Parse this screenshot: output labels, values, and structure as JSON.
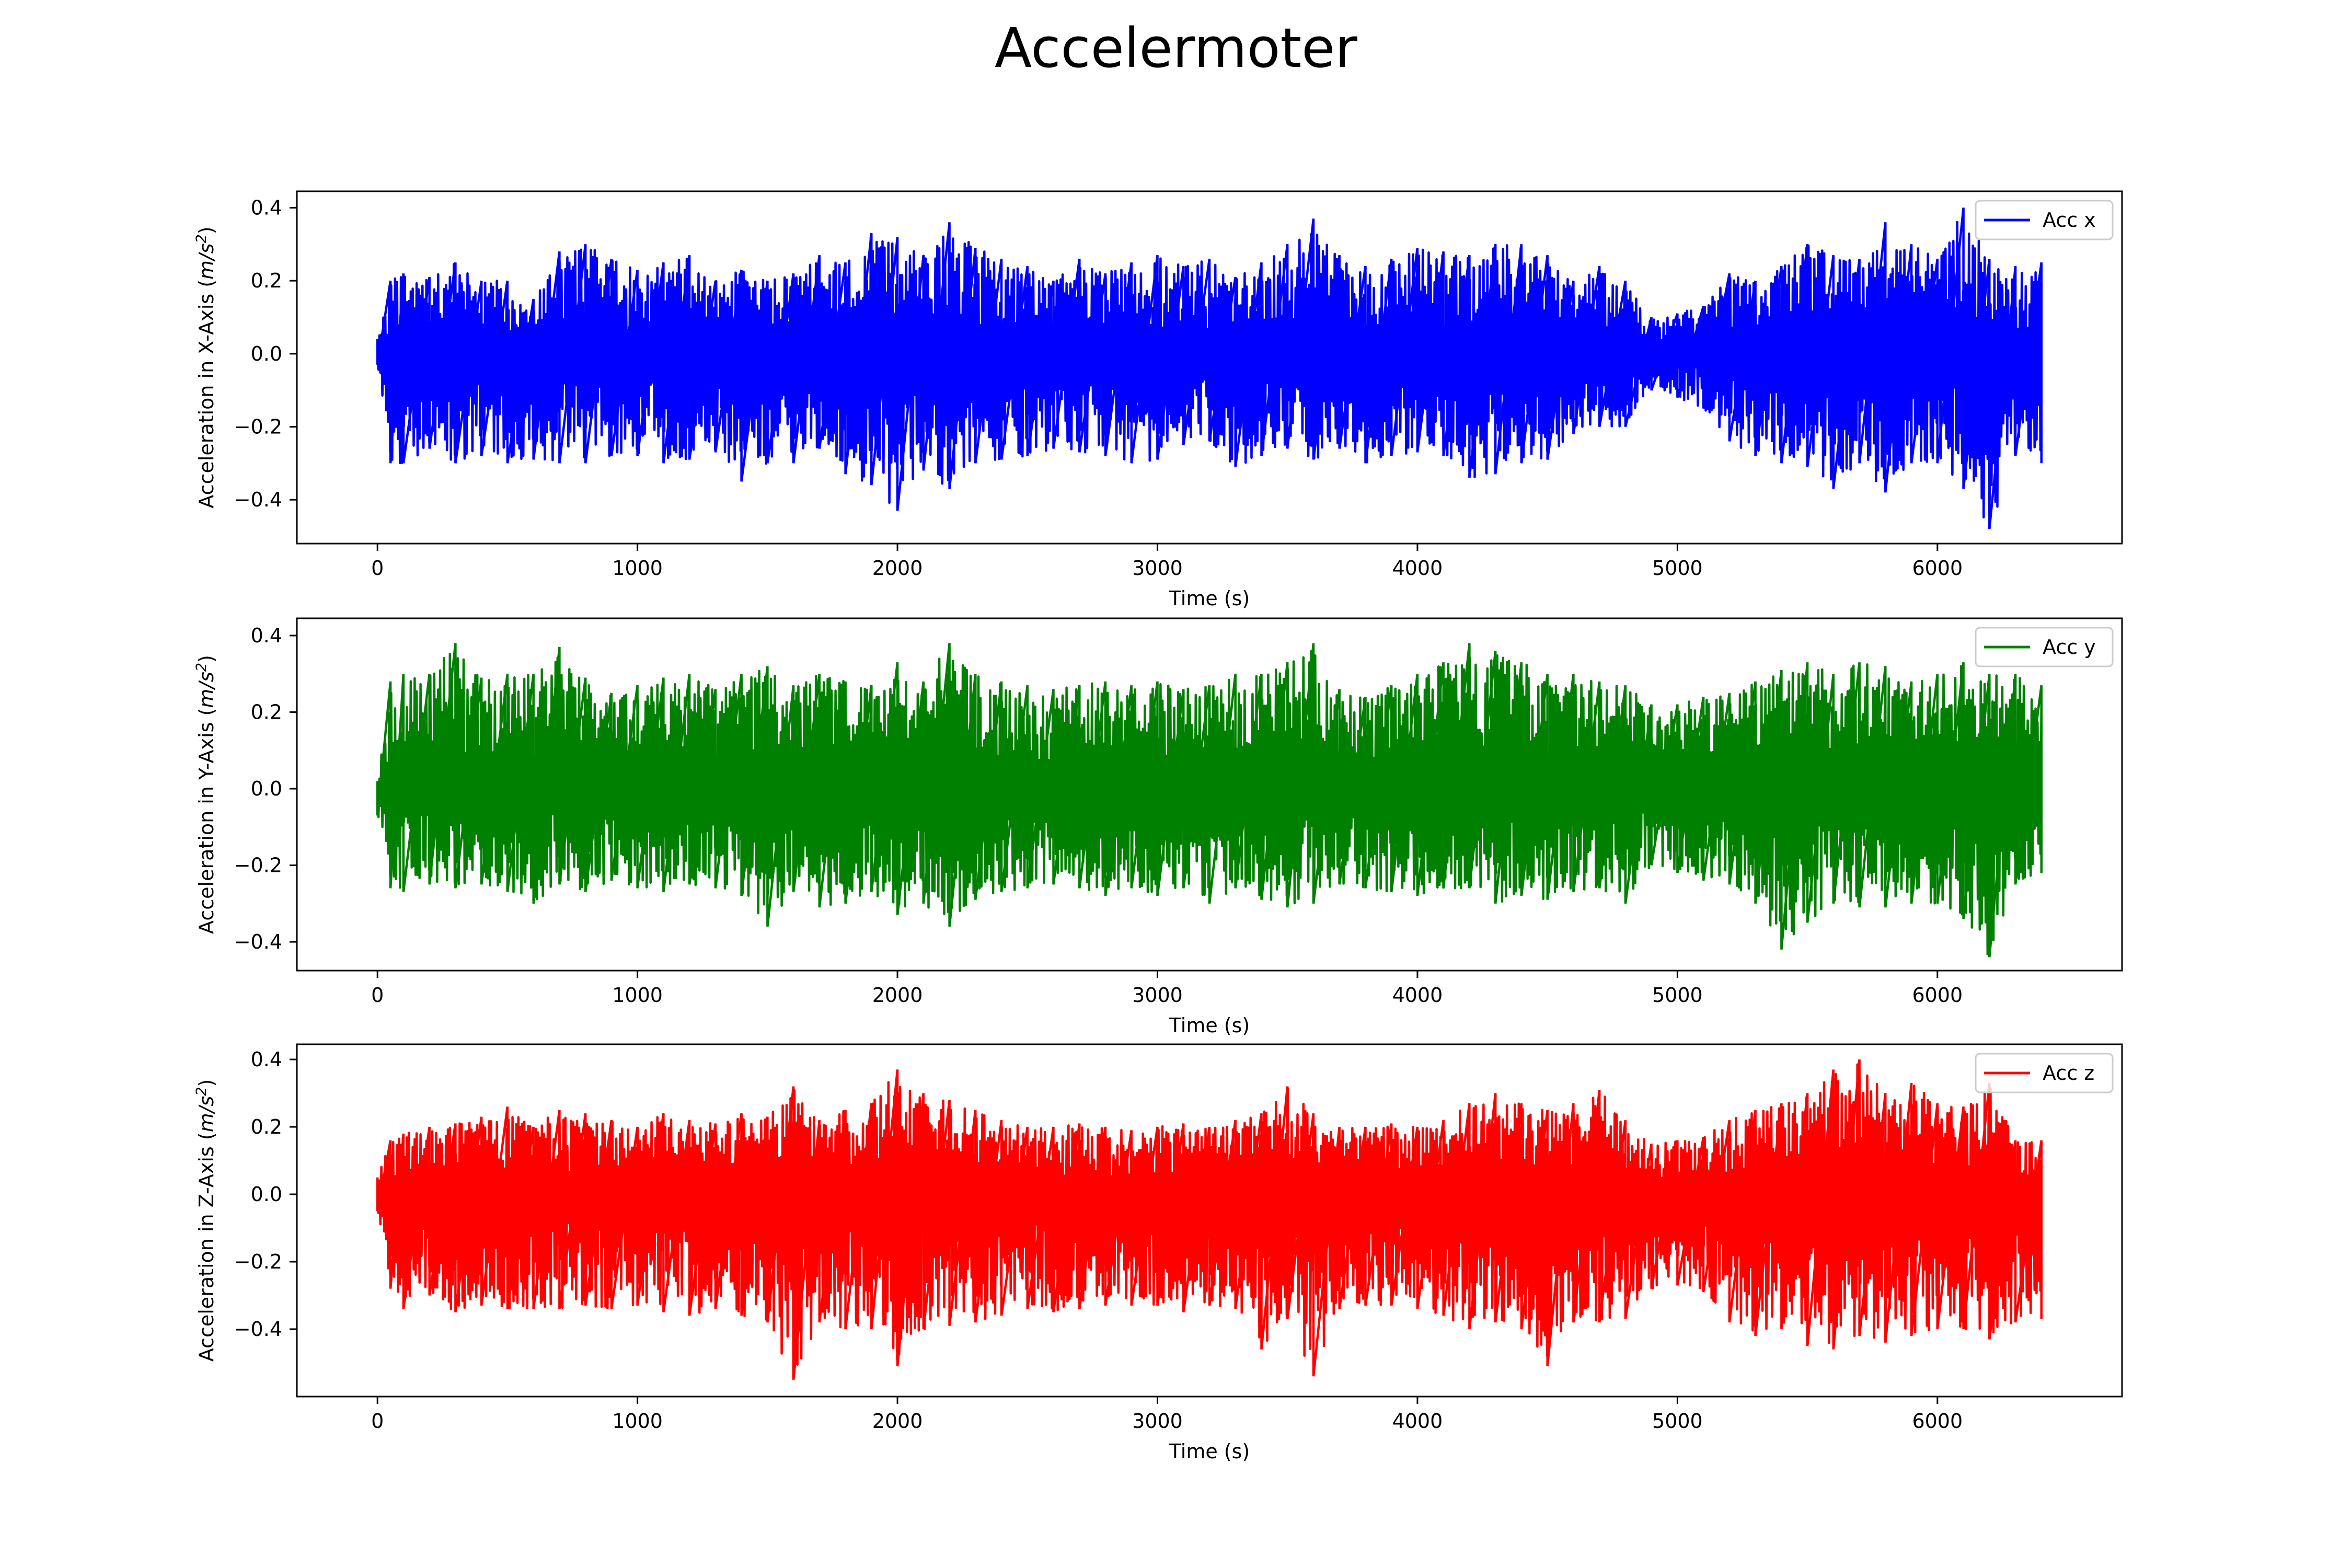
{
  "figure": {
    "title": "Accelermoter"
  },
  "chart_data": [
    {
      "type": "line",
      "xlabel": "Time (s)",
      "ylabel": "Acceleration in X-Axis (m/s²)",
      "ylabel_parts": {
        "prefix": "Acceleration in X-Axis (",
        "unit": "m/s",
        "sup": "2",
        "suffix": ")"
      },
      "xlim": [
        -310,
        6710
      ],
      "ylim": [
        -0.52,
        0.445
      ],
      "xticks": [
        0,
        1000,
        2000,
        3000,
        4000,
        5000,
        6000
      ],
      "yticks": [
        -0.4,
        -0.2,
        0.0,
        0.2,
        0.4
      ],
      "yticklabels": [
        "−0.4",
        "−0.2",
        "0.0",
        "0.2",
        "0.4"
      ],
      "grid": false,
      "legend_position": "top-right",
      "series": [
        {
          "name": "Acc x",
          "color": "#0000ff",
          "x": [
            0,
            50,
            100,
            200,
            300,
            400,
            500,
            600,
            700,
            800,
            900,
            1000,
            1100,
            1200,
            1300,
            1400,
            1500,
            1600,
            1700,
            1800,
            1900,
            2000,
            2100,
            2200,
            2300,
            2400,
            2500,
            2600,
            2700,
            2800,
            2900,
            3000,
            3100,
            3200,
            3300,
            3400,
            3500,
            3600,
            3700,
            3800,
            3900,
            4000,
            4100,
            4200,
            4300,
            4400,
            4500,
            4600,
            4700,
            4800,
            4900,
            5000,
            5100,
            5200,
            5300,
            5400,
            5500,
            5600,
            5700,
            5800,
            5900,
            6000,
            6100,
            6200,
            6300,
            6400
          ],
          "max": [
            0.04,
            0.2,
            0.22,
            0.21,
            0.25,
            0.2,
            0.2,
            0.15,
            0.28,
            0.3,
            0.26,
            0.23,
            0.25,
            0.27,
            0.2,
            0.23,
            0.2,
            0.22,
            0.27,
            0.25,
            0.33,
            0.32,
            0.27,
            0.36,
            0.29,
            0.26,
            0.24,
            0.2,
            0.26,
            0.22,
            0.25,
            0.27,
            0.24,
            0.26,
            0.21,
            0.25,
            0.3,
            0.37,
            0.27,
            0.24,
            0.26,
            0.29,
            0.28,
            0.27,
            0.3,
            0.3,
            0.27,
            0.2,
            0.24,
            0.2,
            0.1,
            0.11,
            0.13,
            0.22,
            0.2,
            0.24,
            0.3,
            0.27,
            0.26,
            0.36,
            0.3,
            0.26,
            0.4,
            0.26,
            0.24,
            0.25
          ],
          "min": [
            -0.03,
            -0.3,
            -0.3,
            -0.26,
            -0.3,
            -0.28,
            -0.3,
            -0.29,
            -0.3,
            -0.3,
            -0.28,
            -0.28,
            -0.3,
            -0.29,
            -0.27,
            -0.35,
            -0.3,
            -0.3,
            -0.26,
            -0.33,
            -0.36,
            -0.43,
            -0.32,
            -0.37,
            -0.3,
            -0.29,
            -0.28,
            -0.26,
            -0.27,
            -0.28,
            -0.3,
            -0.29,
            -0.25,
            -0.24,
            -0.31,
            -0.28,
            -0.26,
            -0.29,
            -0.26,
            -0.3,
            -0.28,
            -0.27,
            -0.28,
            -0.34,
            -0.33,
            -0.3,
            -0.29,
            -0.22,
            -0.2,
            -0.2,
            -0.1,
            -0.12,
            -0.15,
            -0.24,
            -0.28,
            -0.3,
            -0.31,
            -0.37,
            -0.3,
            -0.38,
            -0.3,
            -0.3,
            -0.37,
            -0.48,
            -0.28,
            -0.3
          ]
        }
      ]
    },
    {
      "type": "line",
      "xlabel": "Time (s)",
      "ylabel": "Acceleration in Y-Axis (m/s²)",
      "ylabel_parts": {
        "prefix": "Acceleration in Y-Axis (",
        "unit": "m/s",
        "sup": "2",
        "suffix": ")"
      },
      "xlim": [
        -310,
        6710
      ],
      "ylim": [
        -0.475,
        0.445
      ],
      "xticks": [
        0,
        1000,
        2000,
        3000,
        4000,
        5000,
        6000
      ],
      "yticks": [
        -0.4,
        -0.2,
        0.0,
        0.2,
        0.4
      ],
      "yticklabels": [
        "−0.4",
        "−0.2",
        "0.0",
        "0.2",
        "0.4"
      ],
      "grid": false,
      "legend_position": "top-right",
      "series": [
        {
          "name": "Acc y",
          "color": "#008000",
          "x": [
            0,
            50,
            100,
            200,
            300,
            400,
            500,
            600,
            700,
            800,
            900,
            1000,
            1100,
            1200,
            1300,
            1400,
            1500,
            1600,
            1700,
            1800,
            1900,
            2000,
            2100,
            2200,
            2300,
            2400,
            2500,
            2600,
            2700,
            2800,
            2900,
            3000,
            3100,
            3200,
            3300,
            3400,
            3500,
            3600,
            3700,
            3800,
            3900,
            4000,
            4100,
            4200,
            4300,
            4400,
            4500,
            4600,
            4700,
            4800,
            4900,
            5000,
            5100,
            5200,
            5300,
            5400,
            5500,
            5600,
            5700,
            5800,
            5900,
            6000,
            6100,
            6200,
            6300,
            6400
          ],
          "max": [
            0.02,
            0.28,
            0.3,
            0.3,
            0.38,
            0.29,
            0.3,
            0.3,
            0.37,
            0.29,
            0.25,
            0.27,
            0.29,
            0.3,
            0.26,
            0.3,
            0.32,
            0.27,
            0.3,
            0.28,
            0.27,
            0.33,
            0.28,
            0.38,
            0.3,
            0.28,
            0.27,
            0.26,
            0.27,
            0.28,
            0.27,
            0.28,
            0.26,
            0.27,
            0.3,
            0.3,
            0.33,
            0.38,
            0.26,
            0.24,
            0.27,
            0.3,
            0.33,
            0.38,
            0.36,
            0.33,
            0.3,
            0.3,
            0.28,
            0.27,
            0.22,
            0.22,
            0.24,
            0.25,
            0.28,
            0.31,
            0.33,
            0.3,
            0.33,
            0.32,
            0.28,
            0.3,
            0.33,
            0.3,
            0.3,
            0.27
          ],
          "min": [
            -0.07,
            -0.26,
            -0.27,
            -0.25,
            -0.26,
            -0.25,
            -0.27,
            -0.3,
            -0.25,
            -0.27,
            -0.24,
            -0.26,
            -0.27,
            -0.25,
            -0.26,
            -0.28,
            -0.36,
            -0.27,
            -0.31,
            -0.3,
            -0.27,
            -0.33,
            -0.3,
            -0.36,
            -0.29,
            -0.27,
            -0.26,
            -0.25,
            -0.26,
            -0.28,
            -0.26,
            -0.28,
            -0.26,
            -0.3,
            -0.26,
            -0.29,
            -0.31,
            -0.3,
            -0.25,
            -0.26,
            -0.27,
            -0.28,
            -0.26,
            -0.26,
            -0.3,
            -0.28,
            -0.29,
            -0.27,
            -0.26,
            -0.3,
            -0.2,
            -0.22,
            -0.24,
            -0.25,
            -0.3,
            -0.42,
            -0.35,
            -0.3,
            -0.31,
            -0.31,
            -0.3,
            -0.3,
            -0.34,
            -0.44,
            -0.25,
            -0.22
          ]
        }
      ]
    },
    {
      "type": "line",
      "xlabel": "Time (s)",
      "ylabel": "Acceleration in Z-Axis (m/s²)",
      "ylabel_parts": {
        "prefix": "Acceleration in Z-Axis (",
        "unit": "m/s",
        "sup": "2",
        "suffix": ")"
      },
      "xlim": [
        -310,
        6710
      ],
      "ylim": [
        -0.6,
        0.445
      ],
      "xticks": [
        0,
        1000,
        2000,
        3000,
        4000,
        5000,
        6000
      ],
      "yticks": [
        -0.4,
        -0.2,
        0.0,
        0.2,
        0.4
      ],
      "yticklabels": [
        "−0.4",
        "−0.2",
        "0.0",
        "0.2",
        "0.4"
      ],
      "grid": false,
      "legend_position": "top-right",
      "series": [
        {
          "name": "Acc z",
          "color": "#ff0000",
          "x": [
            0,
            50,
            100,
            200,
            300,
            400,
            500,
            600,
            700,
            800,
            900,
            1000,
            1100,
            1200,
            1300,
            1400,
            1500,
            1600,
            1700,
            1800,
            1900,
            2000,
            2100,
            2200,
            2300,
            2400,
            2500,
            2600,
            2700,
            2800,
            2900,
            3000,
            3100,
            3200,
            3300,
            3400,
            3500,
            3600,
            3700,
            3800,
            3900,
            4000,
            4100,
            4200,
            4300,
            4400,
            4500,
            4600,
            4700,
            4800,
            4900,
            5000,
            5100,
            5200,
            5300,
            5400,
            5500,
            5600,
            5700,
            5800,
            5900,
            6000,
            6100,
            6200,
            6300,
            6400
          ],
          "max": [
            0.05,
            0.16,
            0.18,
            0.2,
            0.21,
            0.23,
            0.26,
            0.2,
            0.25,
            0.24,
            0.22,
            0.2,
            0.24,
            0.22,
            0.21,
            0.24,
            0.23,
            0.32,
            0.22,
            0.25,
            0.27,
            0.37,
            0.3,
            0.28,
            0.25,
            0.22,
            0.2,
            0.2,
            0.21,
            0.2,
            0.19,
            0.2,
            0.21,
            0.2,
            0.22,
            0.24,
            0.32,
            0.24,
            0.2,
            0.2,
            0.21,
            0.2,
            0.22,
            0.27,
            0.3,
            0.27,
            0.25,
            0.27,
            0.31,
            0.22,
            0.15,
            0.16,
            0.17,
            0.22,
            0.25,
            0.27,
            0.3,
            0.37,
            0.4,
            0.3,
            0.33,
            0.27,
            0.26,
            0.33,
            0.16,
            0.16
          ],
          "min": [
            -0.05,
            -0.28,
            -0.34,
            -0.3,
            -0.35,
            -0.33,
            -0.34,
            -0.34,
            -0.34,
            -0.33,
            -0.34,
            -0.33,
            -0.35,
            -0.36,
            -0.34,
            -0.36,
            -0.38,
            -0.55,
            -0.38,
            -0.4,
            -0.4,
            -0.51,
            -0.4,
            -0.39,
            -0.38,
            -0.36,
            -0.34,
            -0.35,
            -0.34,
            -0.33,
            -0.33,
            -0.33,
            -0.35,
            -0.33,
            -0.34,
            -0.46,
            -0.37,
            -0.54,
            -0.34,
            -0.33,
            -0.33,
            -0.34,
            -0.36,
            -0.4,
            -0.38,
            -0.4,
            -0.51,
            -0.38,
            -0.38,
            -0.37,
            -0.28,
            -0.27,
            -0.29,
            -0.38,
            -0.42,
            -0.4,
            -0.45,
            -0.46,
            -0.42,
            -0.44,
            -0.42,
            -0.4,
            -0.4,
            -0.43,
            -0.38,
            -0.37
          ]
        }
      ]
    }
  ]
}
